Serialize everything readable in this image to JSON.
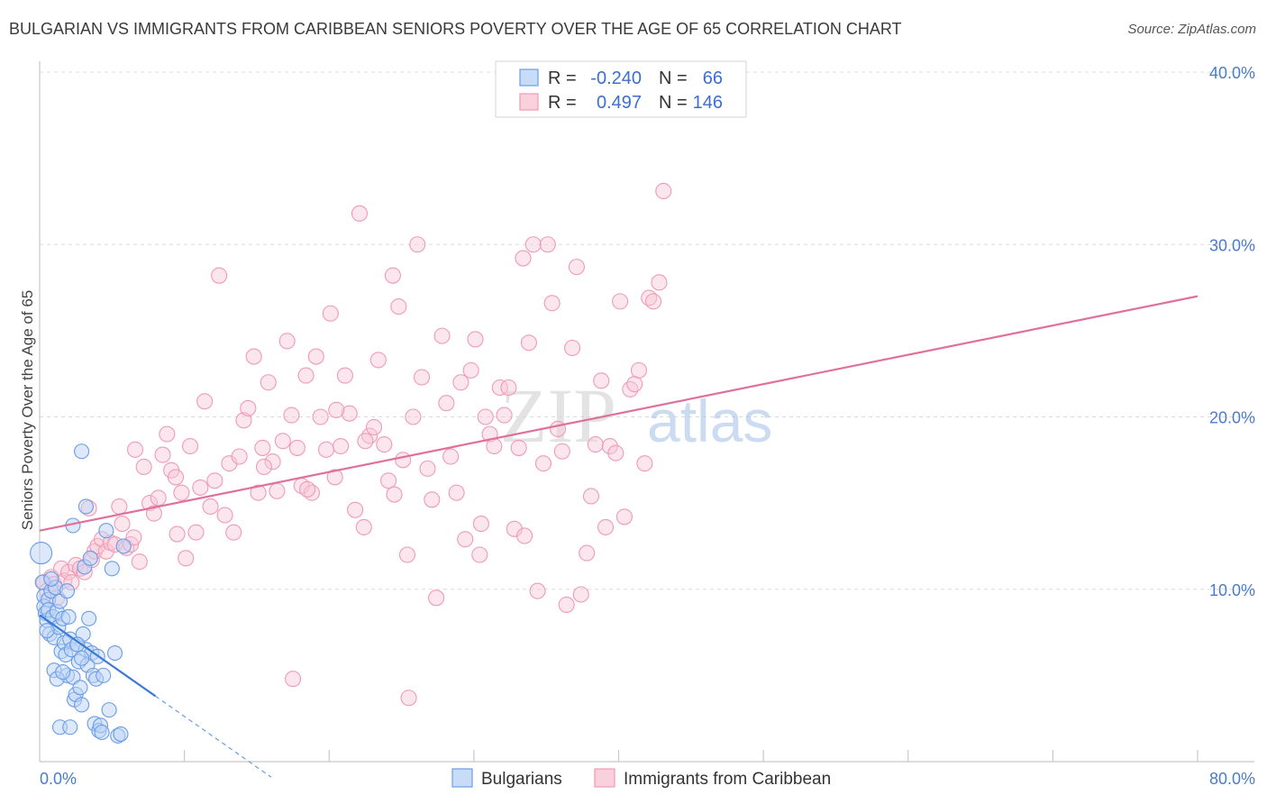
{
  "title": "BULGARIAN VS IMMIGRANTS FROM CARIBBEAN SENIORS POVERTY OVER THE AGE OF 65 CORRELATION CHART",
  "source": "Source: ZipAtlas.com",
  "watermark": {
    "zip": "ZIP",
    "atlas": "atlas"
  },
  "legend": {
    "r_label": "R =",
    "n_label": "N =",
    "rows": [
      {
        "r": "-0.240",
        "n": "66",
        "color": "#7aa7e8"
      },
      {
        "r": "0.497",
        "n": "146",
        "color": "#f0a0b8"
      }
    ]
  },
  "bottom_legend": {
    "items": [
      {
        "label": "Bulgarians",
        "color": "#7aa7e8"
      },
      {
        "label": "Immigrants from Caribbean",
        "color": "#f0a0b8"
      }
    ]
  },
  "chart_data": {
    "type": "scatter",
    "title": "BULGARIAN VS IMMIGRANTS FROM CARIBBEAN SENIORS POVERTY OVER THE AGE OF 65 CORRELATION CHART",
    "ylabel": "Seniors Poverty Over the Age of 65",
    "xlabel": "",
    "xlim": [
      0,
      80
    ],
    "ylim": [
      0,
      40
    ],
    "x_tick_labels": [
      "0.0%",
      "80.0%"
    ],
    "y_ticks": [
      10,
      20,
      30,
      40
    ],
    "y_tick_labels": [
      "10.0%",
      "20.0%",
      "30.0%",
      "40.0%"
    ],
    "grid": true,
    "series": [
      {
        "name": "Bulgarians",
        "color": "#6a9ce6",
        "r": -0.24,
        "n": 66,
        "trend": {
          "x0": 0,
          "y0": 8.5,
          "x1": 8,
          "y1": 3.8,
          "dash_to_x": 16
        },
        "points": [
          [
            0.1,
            12.1
          ],
          [
            0.2,
            10.4
          ],
          [
            0.3,
            9.6
          ],
          [
            0.3,
            9.0
          ],
          [
            0.4,
            8.6
          ],
          [
            0.5,
            8.2
          ],
          [
            0.6,
            9.4
          ],
          [
            0.6,
            8.8
          ],
          [
            0.7,
            7.4
          ],
          [
            0.8,
            9.9
          ],
          [
            0.9,
            8.4
          ],
          [
            1.0,
            7.2
          ],
          [
            1.1,
            10.1
          ],
          [
            1.2,
            8.7
          ],
          [
            1.3,
            7.8
          ],
          [
            1.4,
            9.3
          ],
          [
            1.5,
            6.4
          ],
          [
            1.6,
            8.3
          ],
          [
            1.7,
            6.9
          ],
          [
            1.8,
            6.2
          ],
          [
            1.9,
            5.0
          ],
          [
            2.0,
            8.4
          ],
          [
            2.1,
            7.1
          ],
          [
            2.2,
            6.5
          ],
          [
            2.3,
            4.9
          ],
          [
            2.4,
            3.6
          ],
          [
            2.5,
            3.9
          ],
          [
            2.6,
            6.8
          ],
          [
            2.7,
            5.8
          ],
          [
            2.8,
            4.3
          ],
          [
            2.9,
            3.3
          ],
          [
            3.0,
            7.4
          ],
          [
            3.1,
            11.3
          ],
          [
            3.2,
            6.5
          ],
          [
            3.3,
            5.6
          ],
          [
            3.4,
            8.3
          ],
          [
            3.6,
            6.3
          ],
          [
            3.7,
            5.0
          ],
          [
            3.8,
            2.2
          ],
          [
            3.9,
            4.8
          ],
          [
            4.0,
            6.1
          ],
          [
            4.1,
            1.8
          ],
          [
            4.2,
            2.1
          ],
          [
            4.3,
            1.7
          ],
          [
            4.4,
            5.0
          ],
          [
            4.6,
            13.4
          ],
          [
            4.8,
            3.0
          ],
          [
            5.0,
            11.2
          ],
          [
            5.2,
            6.3
          ],
          [
            5.4,
            1.5
          ],
          [
            5.6,
            1.6
          ],
          [
            5.8,
            12.5
          ],
          [
            1.0,
            5.3
          ],
          [
            1.2,
            4.8
          ],
          [
            1.4,
            2.0
          ],
          [
            2.1,
            2.0
          ],
          [
            2.9,
            18.0
          ],
          [
            3.2,
            14.8
          ],
          [
            3.5,
            11.8
          ],
          [
            1.6,
            5.2
          ],
          [
            2.3,
            13.7
          ],
          [
            0.8,
            10.6
          ],
          [
            1.9,
            9.9
          ],
          [
            2.6,
            6.8
          ],
          [
            2.9,
            6.0
          ],
          [
            0.5,
            7.6
          ]
        ]
      },
      {
        "name": "Immigrants from Caribbean",
        "color": "#f09ab4",
        "r": 0.497,
        "n": 146,
        "trend": {
          "x0": 0,
          "y0": 13.4,
          "x1": 80,
          "y1": 27.0
        },
        "points": [
          [
            0.3,
            10.4
          ],
          [
            0.5,
            9.9
          ],
          [
            0.8,
            10.7
          ],
          [
            1.0,
            10.3
          ],
          [
            1.2,
            9.5
          ],
          [
            1.5,
            11.2
          ],
          [
            1.7,
            10.5
          ],
          [
            2.0,
            11.0
          ],
          [
            2.2,
            10.4
          ],
          [
            2.5,
            11.4
          ],
          [
            2.8,
            11.2
          ],
          [
            3.1,
            11.0
          ],
          [
            3.4,
            14.7
          ],
          [
            3.6,
            11.7
          ],
          [
            3.8,
            12.2
          ],
          [
            4.0,
            12.5
          ],
          [
            4.3,
            12.9
          ],
          [
            4.6,
            12.2
          ],
          [
            4.9,
            12.7
          ],
          [
            5.2,
            12.6
          ],
          [
            5.5,
            14.8
          ],
          [
            5.7,
            13.8
          ],
          [
            6.0,
            12.4
          ],
          [
            6.3,
            12.6
          ],
          [
            6.6,
            18.1
          ],
          [
            6.9,
            11.6
          ],
          [
            7.2,
            17.1
          ],
          [
            7.6,
            15.0
          ],
          [
            7.9,
            14.4
          ],
          [
            8.2,
            15.3
          ],
          [
            8.5,
            17.8
          ],
          [
            8.8,
            19.0
          ],
          [
            9.1,
            16.9
          ],
          [
            9.4,
            16.5
          ],
          [
            9.8,
            15.6
          ],
          [
            10.1,
            11.8
          ],
          [
            10.4,
            18.3
          ],
          [
            10.8,
            13.3
          ],
          [
            11.1,
            15.9
          ],
          [
            11.4,
            20.9
          ],
          [
            11.8,
            14.8
          ],
          [
            12.1,
            16.3
          ],
          [
            12.4,
            28.2
          ],
          [
            12.8,
            14.3
          ],
          [
            13.1,
            17.3
          ],
          [
            13.4,
            13.3
          ],
          [
            13.8,
            17.7
          ],
          [
            14.1,
            19.8
          ],
          [
            14.4,
            20.5
          ],
          [
            14.8,
            23.5
          ],
          [
            15.1,
            15.6
          ],
          [
            15.4,
            18.2
          ],
          [
            15.8,
            22.0
          ],
          [
            16.1,
            17.4
          ],
          [
            16.4,
            15.7
          ],
          [
            16.8,
            18.6
          ],
          [
            17.1,
            24.4
          ],
          [
            17.4,
            20.1
          ],
          [
            17.8,
            18.2
          ],
          [
            18.1,
            16.0
          ],
          [
            18.4,
            22.4
          ],
          [
            18.8,
            15.6
          ],
          [
            19.1,
            23.5
          ],
          [
            19.4,
            20.0
          ],
          [
            19.8,
            18.1
          ],
          [
            20.1,
            26.0
          ],
          [
            20.4,
            16.5
          ],
          [
            20.8,
            18.3
          ],
          [
            21.1,
            22.4
          ],
          [
            21.4,
            20.2
          ],
          [
            21.8,
            14.6
          ],
          [
            22.1,
            31.8
          ],
          [
            22.4,
            13.6
          ],
          [
            22.8,
            18.9
          ],
          [
            23.1,
            19.4
          ],
          [
            23.4,
            23.3
          ],
          [
            23.8,
            18.4
          ],
          [
            24.1,
            16.3
          ],
          [
            24.4,
            28.2
          ],
          [
            24.8,
            26.4
          ],
          [
            25.1,
            17.5
          ],
          [
            25.4,
            12.0
          ],
          [
            25.8,
            20.0
          ],
          [
            26.1,
            30.0
          ],
          [
            26.4,
            22.3
          ],
          [
            26.8,
            17.0
          ],
          [
            27.1,
            15.2
          ],
          [
            27.4,
            9.5
          ],
          [
            27.8,
            24.7
          ],
          [
            28.1,
            20.8
          ],
          [
            28.4,
            17.7
          ],
          [
            28.8,
            15.6
          ],
          [
            29.1,
            22.0
          ],
          [
            29.4,
            12.9
          ],
          [
            29.8,
            22.7
          ],
          [
            30.1,
            24.5
          ],
          [
            30.4,
            12.0
          ],
          [
            30.8,
            20.0
          ],
          [
            31.1,
            19.0
          ],
          [
            31.4,
            18.3
          ],
          [
            31.8,
            21.7
          ],
          [
            32.1,
            20.1
          ],
          [
            32.4,
            21.7
          ],
          [
            32.8,
            13.5
          ],
          [
            33.1,
            18.2
          ],
          [
            33.4,
            29.2
          ],
          [
            33.8,
            24.3
          ],
          [
            34.1,
            30.0
          ],
          [
            34.4,
            9.9
          ],
          [
            34.8,
            17.3
          ],
          [
            35.1,
            30.0
          ],
          [
            35.4,
            26.6
          ],
          [
            35.8,
            19.3
          ],
          [
            36.1,
            18.0
          ],
          [
            36.4,
            9.1
          ],
          [
            36.8,
            24.0
          ],
          [
            37.1,
            28.7
          ],
          [
            37.4,
            9.7
          ],
          [
            37.8,
            12.1
          ],
          [
            38.1,
            15.4
          ],
          [
            38.4,
            18.4
          ],
          [
            38.8,
            22.1
          ],
          [
            39.1,
            13.6
          ],
          [
            39.4,
            18.3
          ],
          [
            39.8,
            17.9
          ],
          [
            40.1,
            26.7
          ],
          [
            40.4,
            14.2
          ],
          [
            40.8,
            21.6
          ],
          [
            41.1,
            21.9
          ],
          [
            41.4,
            22.7
          ],
          [
            41.8,
            17.3
          ],
          [
            42.1,
            26.9
          ],
          [
            42.4,
            26.7
          ],
          [
            42.8,
            27.8
          ],
          [
            43.1,
            33.1
          ],
          [
            18.5,
            15.8
          ],
          [
            24.5,
            15.5
          ],
          [
            30.5,
            13.8
          ],
          [
            9.5,
            13.2
          ],
          [
            22.5,
            18.6
          ],
          [
            33.5,
            13.1
          ],
          [
            17.5,
            4.8
          ],
          [
            25.5,
            3.7
          ],
          [
            6.5,
            13.0
          ],
          [
            15.5,
            17.1
          ],
          [
            20.5,
            20.4
          ]
        ]
      }
    ]
  }
}
